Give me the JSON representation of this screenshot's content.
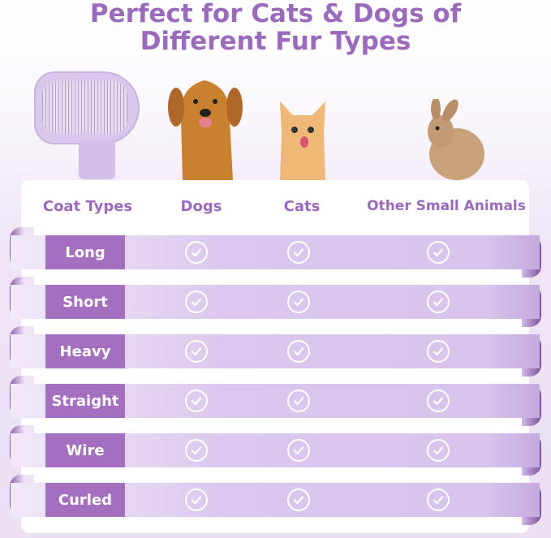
{
  "title_line1": "Perfect for Cats & Dogs of",
  "title_line2": "Different Fur Types",
  "table": {
    "headers": [
      "Coat Types",
      "Dogs",
      "Cats",
      "Other Small Animals"
    ],
    "rows": [
      {
        "label": "Long",
        "dogs": true,
        "cats": true,
        "other": true
      },
      {
        "label": "Short",
        "dogs": true,
        "cats": true,
        "other": true
      },
      {
        "label": "Heavy",
        "dogs": true,
        "cats": true,
        "other": true
      },
      {
        "label": "Straight",
        "dogs": true,
        "cats": true,
        "other": true
      },
      {
        "label": "Wire",
        "dogs": true,
        "cats": true,
        "other": true
      },
      {
        "label": "Curled",
        "dogs": true,
        "cats": true,
        "other": true
      }
    ]
  },
  "colors": {
    "accent": "#9a6bbd",
    "label_bg": "#a56fc0",
    "ribbon": "#d8c4ec"
  },
  "icons": {
    "check": "check-circle-icon"
  }
}
